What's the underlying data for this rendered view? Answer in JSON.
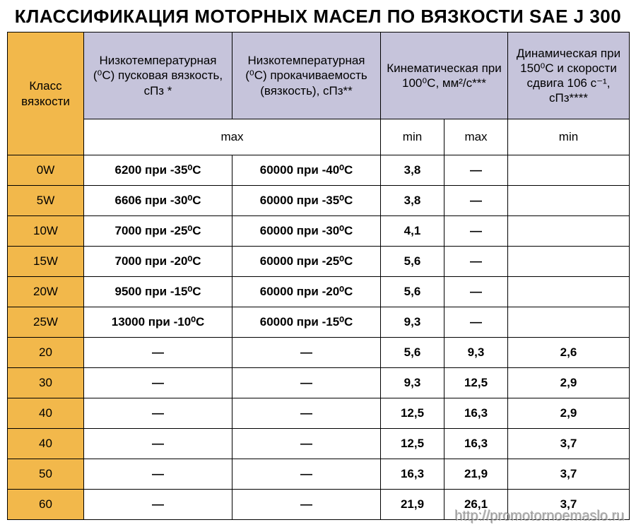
{
  "title": "КЛАССИФИКАЦИЯ МОТОРНЫХ МАСЕЛ ПО ВЯЗКОСТИ SAE J 300",
  "colors": {
    "left_header_bg": "#f2b84b",
    "top_header_bg": "#c6c4db",
    "border": "#000000",
    "bg": "#ffffff"
  },
  "columns": {
    "c0_label": "Класс вязкости",
    "c1_label": "Низкотемпературная (⁰С) пусковая вязкость, сПз *",
    "c2_label": "Низкотемпературная (⁰С) прокачиваемость (вязкость), сПз**",
    "c3_label": "Кинематическая при 100⁰С, мм²/с***",
    "c4_label": "Динамическая при 150⁰С и скорости сдвига 106 с⁻¹, сПз****"
  },
  "subheaders": {
    "max12": "max",
    "min": "min",
    "max": "max",
    "min5": "min"
  },
  "rows": [
    {
      "grade": "0W",
      "col1": "6200 при -35⁰С",
      "col2": "60000 при -40⁰С",
      "min": "3,8",
      "max": "—",
      "dyn": ""
    },
    {
      "grade": "5W",
      "col1": "6606 при -30⁰С",
      "col2": "60000 при -35⁰С",
      "min": "3,8",
      "max": "—",
      "dyn": ""
    },
    {
      "grade": "10W",
      "col1": "7000 при -25⁰С",
      "col2": "60000 при -30⁰С",
      "min": "4,1",
      "max": "—",
      "dyn": ""
    },
    {
      "grade": "15W",
      "col1": "7000 при -20⁰С",
      "col2": "60000 при -25⁰С",
      "min": "5,6",
      "max": "—",
      "dyn": ""
    },
    {
      "grade": "20W",
      "col1": "9500 при -15⁰С",
      "col2": "60000 при -20⁰С",
      "min": "5,6",
      "max": "—",
      "dyn": ""
    },
    {
      "grade": "25W",
      "col1": "13000 при -10⁰С",
      "col2": "60000 при -15⁰С",
      "min": "9,3",
      "max": "—",
      "dyn": ""
    },
    {
      "grade": "20",
      "col1": "—",
      "col2": "—",
      "min": "5,6",
      "max": "9,3",
      "dyn": "2,6"
    },
    {
      "grade": "30",
      "col1": "—",
      "col2": "—",
      "min": "9,3",
      "max": "12,5",
      "dyn": "2,9"
    },
    {
      "grade": "40",
      "col1": "—",
      "col2": "—",
      "min": "12,5",
      "max": "16,3",
      "dyn": "2,9"
    },
    {
      "grade": "40",
      "col1": "—",
      "col2": "—",
      "min": "12,5",
      "max": "16,3",
      "dyn": "3,7"
    },
    {
      "grade": "50",
      "col1": "—",
      "col2": "—",
      "min": "16,3",
      "max": "21,9",
      "dyn": "3,7"
    },
    {
      "grade": "60",
      "col1": "—",
      "col2": "—",
      "min": "21,9",
      "max": "26,1",
      "dyn": "3,7"
    }
  ],
  "watermark": "http://promotornoemaslo.ru"
}
